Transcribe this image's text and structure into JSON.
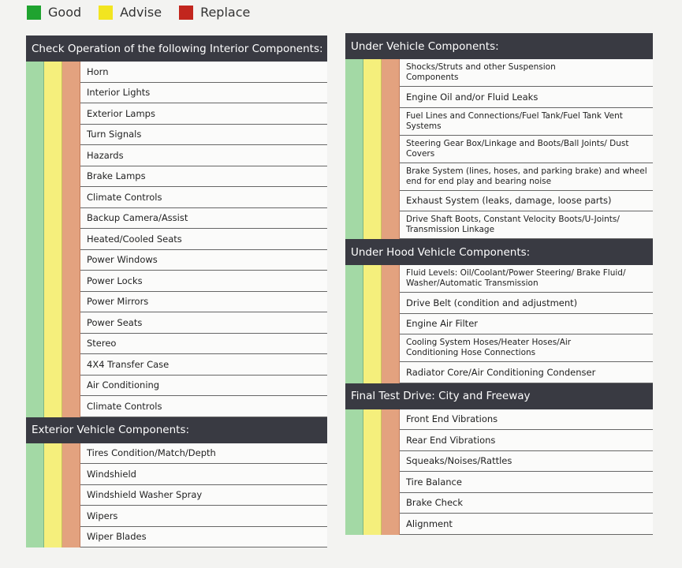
{
  "legend": [
    "Good",
    "Advise",
    "Replace"
  ],
  "columns": [
    {
      "sections": [
        {
          "title": "Check Operation of the following Interior Components:",
          "items": [
            "Horn",
            "Interior Lights",
            "Exterior Lamps",
            "Turn Signals",
            "Hazards",
            "Brake Lamps",
            "Climate Controls",
            "Backup Camera/Assist",
            "Heated/Cooled Seats",
            "Power Windows",
            "Power Locks",
            "Power Mirrors",
            "Power Seats",
            "Stereo",
            "4X4 Transfer Case",
            "Air Conditioning",
            "Climate Controls"
          ]
        },
        {
          "title": "Exterior Vehicle Components:",
          "items": [
            "Tires Condition/Match/Depth",
            "Windshield",
            "Windshield Washer Spray",
            "Wipers",
            "Wiper Blades"
          ]
        }
      ]
    },
    {
      "sections": [
        {
          "title": "Under Vehicle Components:",
          "items": [
            "Shocks/Struts and other Suspension\nComponents",
            "Engine Oil and/or Fluid Leaks",
            "Fuel Lines and Connections/Fuel Tank/Fuel Tank Vent\nSystems",
            "Steering Gear Box/Linkage and Boots/Ball Joints/ Dust\nCovers",
            "Brake System (lines, hoses, and parking brake) and wheel\nend for end play and bearing noise",
            "Exhaust System (leaks, damage, loose parts)",
            "Drive Shaft Boots, Constant Velocity Boots/U-Joints/\nTransmission Linkage"
          ]
        },
        {
          "title": "Under Hood Vehicle Components:",
          "items": [
            "Fluid Levels: Oil/Coolant/Power Steering/ Brake Fluid/\nWasher/Automatic Transmission",
            "Drive Belt (condition and adjustment)",
            "Engine Air Filter",
            "Cooling System Hoses/Heater Hoses/Air\nConditioning Hose Connections",
            "Radiator Core/Air Conditioning Condenser"
          ]
        },
        {
          "title": "Final Test Drive: City and Freeway",
          "items": [
            "Front End Vibrations",
            "Rear End Vibrations",
            "Squeaks/Noises/Rattles",
            "Tire Balance",
            "Brake Check",
            "Alignment"
          ]
        }
      ]
    }
  ]
}
